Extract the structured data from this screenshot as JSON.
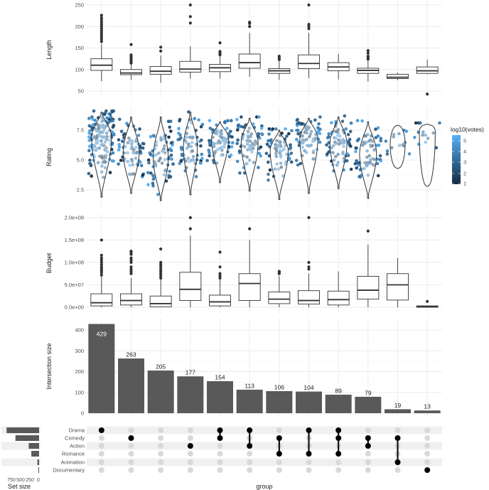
{
  "chart_data": [
    {
      "type": "boxplot",
      "panel": "length",
      "ylabel": "Length",
      "yticks": [
        50,
        100,
        150,
        200,
        250
      ],
      "ylim": [
        38,
        255
      ],
      "groups": [
        {
          "q1": 98,
          "median": 110,
          "q3": 125,
          "lo": 73,
          "hi": 160,
          "outliers": [
            165,
            170,
            175,
            180,
            185,
            190,
            195,
            200,
            205,
            210,
            215,
            220,
            226
          ]
        },
        {
          "q1": 88,
          "median": 92,
          "q3": 100,
          "lo": 76,
          "hi": 113,
          "outliers": [
            115,
            118,
            122,
            126,
            130,
            134,
            158
          ]
        },
        {
          "q1": 89,
          "median": 96,
          "q3": 107,
          "lo": 69,
          "hi": 133,
          "outliers": [
            143,
            152
          ]
        },
        {
          "q1": 94,
          "median": 101,
          "q3": 119,
          "lo": 79,
          "hi": 154,
          "outliers": [
            208,
            223,
            250
          ]
        },
        {
          "q1": 95,
          "median": 104,
          "q3": 112,
          "lo": 79,
          "hi": 132,
          "outliers": [
            134,
            138,
            142,
            162
          ]
        },
        {
          "q1": 103,
          "median": 116,
          "q3": 136,
          "lo": 83,
          "hi": 185,
          "outliers": [
            200,
            207,
            210
          ]
        },
        {
          "q1": 91,
          "median": 97,
          "q3": 102,
          "lo": 76,
          "hi": 119,
          "outliers": [
            123,
            127,
            131
          ]
        },
        {
          "q1": 102,
          "median": 114,
          "q3": 134,
          "lo": 80,
          "hi": 185,
          "outliers": [
            195,
            200,
            205,
            250
          ]
        },
        {
          "q1": 97,
          "median": 106,
          "q3": 116,
          "lo": 77,
          "hi": 136,
          "outliers": []
        },
        {
          "q1": 91,
          "median": 98,
          "q3": 103,
          "lo": 72,
          "hi": 120,
          "outliers": [
            124,
            128,
            131,
            138,
            144
          ]
        },
        {
          "q1": 79,
          "median": 82,
          "q3": 89,
          "lo": 75,
          "hi": 93,
          "outliers": []
        },
        {
          "q1": 91,
          "median": 97,
          "q3": 106,
          "lo": 89,
          "hi": 123,
          "outliers": [
            43
          ]
        }
      ]
    },
    {
      "type": "violin+jitter",
      "panel": "rating",
      "ylabel": "Rating",
      "yticks": [
        2.5,
        5.0,
        7.5
      ],
      "ylim": [
        1.1,
        9.4
      ],
      "color_legend": {
        "title": "log10(votes)",
        "ticks": [
          1,
          2,
          3,
          4,
          5
        ],
        "low_color": "#132B43",
        "high_color": "#56B1F7"
      },
      "groups": [
        {
          "min": 1.9,
          "max": 9.0,
          "peak": 6.9,
          "width": 1.0
        },
        {
          "min": 2.2,
          "max": 8.6,
          "peak": 5.7,
          "width": 0.8
        },
        {
          "min": 1.6,
          "max": 8.6,
          "peak": 5.2,
          "width": 0.75
        },
        {
          "min": 2.1,
          "max": 9.0,
          "peak": 6.1,
          "width": 0.7
        },
        {
          "min": 3.1,
          "max": 8.2,
          "peak": 6.8,
          "width": 0.85
        },
        {
          "min": 2.4,
          "max": 8.5,
          "peak": 6.5,
          "width": 0.85
        },
        {
          "min": 1.7,
          "max": 7.5,
          "peak": 5.8,
          "width": 0.9
        },
        {
          "min": 2.2,
          "max": 8.5,
          "peak": 6.8,
          "width": 0.9
        },
        {
          "min": 2.6,
          "max": 8.6,
          "peak": 6.4,
          "width": 0.85
        },
        {
          "min": 1.8,
          "max": 8.2,
          "peak": 5.5,
          "width": 0.85
        },
        {
          "min": 4.3,
          "max": 7.9,
          "peak": 6.3,
          "width": 0.75
        },
        {
          "min": 2.8,
          "max": 8.0,
          "peak": 7.4,
          "width": 0.8
        }
      ]
    },
    {
      "type": "boxplot",
      "panel": "budget",
      "ylabel": "Budget",
      "yticks": [
        0,
        50000000,
        100000000,
        150000000,
        200000000
      ],
      "ytick_labels": [
        "0.0e+00",
        "5.0e+07",
        "1.0e+08",
        "1.5e+08",
        "2.0e+08"
      ],
      "ylim": [
        -5000000,
        210000000
      ],
      "groups": [
        {
          "q1": 3000000,
          "median": 10000000,
          "q3": 30000000,
          "lo": 0,
          "hi": 70000000,
          "outliers": [
            72000000,
            78000000,
            82000000,
            86000000,
            90000000,
            95000000,
            100000000,
            105000000,
            110000000,
            116000000,
            150000000
          ]
        },
        {
          "q1": 5000000,
          "median": 15000000,
          "q3": 30000000,
          "lo": 0,
          "hi": 65000000,
          "outliers": [
            75000000,
            80000000,
            85000000,
            90000000,
            100000000,
            105000000,
            110000000,
            118000000,
            122000000,
            125000000
          ]
        },
        {
          "q1": 1000000,
          "median": 8000000,
          "q3": 25000000,
          "lo": 0,
          "hi": 63000000,
          "outliers": [
            65000000,
            70000000,
            75000000,
            80000000,
            85000000,
            90000000,
            95000000,
            100000000,
            130000000
          ]
        },
        {
          "q1": 15000000,
          "median": 40000000,
          "q3": 78000000,
          "lo": 0,
          "hi": 160000000,
          "outliers": [
            175000000,
            200000000
          ]
        },
        {
          "q1": 3000000,
          "median": 12000000,
          "q3": 27000000,
          "lo": 0,
          "hi": 63000000,
          "outliers": [
            65000000,
            70000000,
            75000000,
            90000000,
            123000000
          ]
        },
        {
          "q1": 15000000,
          "median": 53000000,
          "q3": 75000000,
          "lo": 0,
          "hi": 150000000,
          "outliers": [
            175000000
          ]
        },
        {
          "q1": 8000000,
          "median": 18000000,
          "q3": 34000000,
          "lo": 0,
          "hi": 70000000,
          "outliers": [
            75000000,
            78000000,
            80000000
          ]
        },
        {
          "q1": 7000000,
          "median": 15000000,
          "q3": 37000000,
          "lo": 0,
          "hi": 75000000,
          "outliers": [
            85000000,
            90000000,
            100000000,
            200000000
          ]
        },
        {
          "q1": 5000000,
          "median": 17000000,
          "q3": 36000000,
          "lo": 0,
          "hi": 80000000,
          "outliers": []
        },
        {
          "q1": 18000000,
          "median": 38000000,
          "q3": 69000000,
          "lo": 0,
          "hi": 140000000,
          "outliers": [
            170000000
          ]
        },
        {
          "q1": 16000000,
          "median": 50000000,
          "q3": 75000000,
          "lo": 0,
          "hi": 110000000,
          "outliers": []
        },
        {
          "q1": 0,
          "median": 1000000,
          "q3": 3000000,
          "lo": 0,
          "hi": 3000000,
          "outliers": [
            13000000
          ]
        }
      ]
    },
    {
      "type": "bar",
      "panel": "intersection",
      "ylabel": "Intersection size",
      "yticks": [
        0,
        100,
        200,
        300,
        400
      ],
      "ylim": [
        0,
        440
      ],
      "values": [
        429,
        263,
        205,
        177,
        154,
        113,
        106,
        104,
        89,
        79,
        19,
        13
      ],
      "labels": [
        "429",
        "263",
        "205",
        "177",
        "154",
        "113",
        "106",
        "104",
        "89",
        "79",
        "19",
        "13"
      ]
    },
    {
      "type": "matrix",
      "panel": "upset-matrix",
      "xlabel": "group",
      "sets": [
        "Drama",
        "Comedy",
        "Action",
        "Romance",
        "Animation",
        "Documentary"
      ],
      "set_sizes": [
        880,
        640,
        280,
        210,
        45,
        20
      ],
      "set_size_ticks": [
        "750",
        "500",
        "250",
        "0"
      ],
      "set_size_title": "Set size",
      "intersections": [
        [
          "Drama"
        ],
        [
          "Comedy"
        ],
        [],
        [
          "Action"
        ],
        [
          "Drama",
          "Comedy"
        ],
        [
          "Drama",
          "Action"
        ],
        [
          "Comedy",
          "Romance"
        ],
        [
          "Drama",
          "Romance"
        ],
        [
          "Drama",
          "Comedy",
          "Romance"
        ],
        [
          "Comedy",
          "Action"
        ],
        [
          "Comedy",
          "Animation"
        ],
        [
          "Documentary"
        ]
      ]
    }
  ],
  "colors": {
    "box_stroke": "#333333",
    "bar_fill": "#595959",
    "dot_active": "#000000",
    "dot_inactive": "#d9d9d9",
    "grid": "#ebebeb",
    "stripe": "#f0f0f0",
    "violin_fill": "#ffffff"
  }
}
